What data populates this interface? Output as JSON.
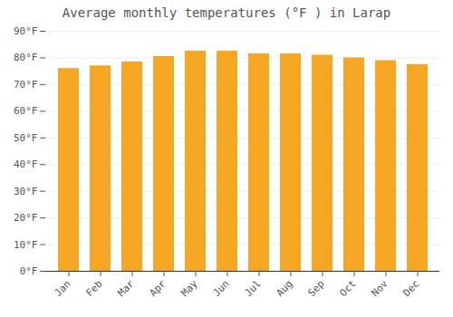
{
  "chart_data": {
    "type": "bar",
    "title": "Average monthly temperatures (°F ) in Larap",
    "categories": [
      "Jan",
      "Feb",
      "Mar",
      "Apr",
      "May",
      "Jun",
      "Jul",
      "Aug",
      "Sep",
      "Oct",
      "Nov",
      "Dec"
    ],
    "values": [
      76,
      77,
      78.5,
      80.5,
      82.5,
      82.5,
      81.5,
      81.5,
      81,
      80,
      79,
      77.5
    ],
    "color": "#F5A623",
    "ylim": [
      0,
      90
    ],
    "yticks": [
      {
        "value": 0,
        "label": "0°F"
      },
      {
        "value": 10,
        "label": "10°F"
      },
      {
        "value": 20,
        "label": "20°F"
      },
      {
        "value": 30,
        "label": "30°F"
      },
      {
        "value": 40,
        "label": "40°F"
      },
      {
        "value": 50,
        "label": "50°F"
      },
      {
        "value": 60,
        "label": "60°F"
      },
      {
        "value": 70,
        "label": "70°F"
      },
      {
        "value": 80,
        "label": "80°F"
      },
      {
        "value": 90,
        "label": "90°F"
      }
    ],
    "grid": true
  }
}
